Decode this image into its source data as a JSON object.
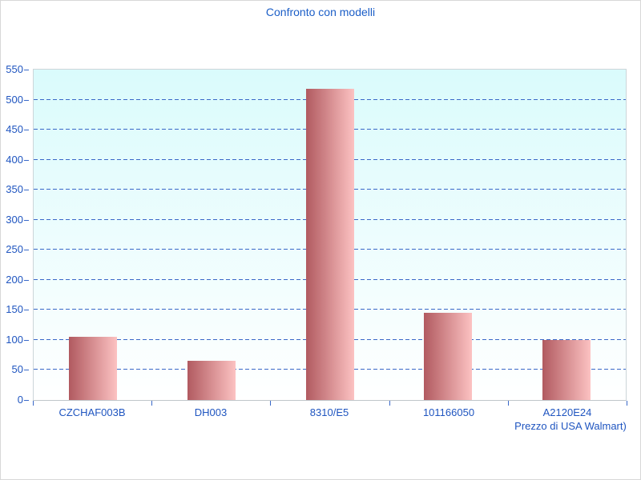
{
  "title": "Confronto con modelli",
  "colors": {
    "title_text": "#1b5ec7",
    "axis_text": "#1f55c0",
    "gridline": "#3968c8",
    "plot_bg_top": "#dafbfc",
    "plot_bg_bottom": "#ffffff",
    "plot_border": "#ccd5d9",
    "axis_line": "#c0c6ca",
    "bar_dark": "#b15a60",
    "bar_light": "#fcc2c2",
    "outer_border": "#d8d8d8"
  },
  "chart_data": {
    "type": "bar",
    "title": "Confronto con modelli",
    "categories": [
      "CZCHAF003B",
      "DH003",
      "8310/E5",
      "101166050",
      "A2120E24"
    ],
    "values": [
      105,
      65,
      518,
      145,
      100
    ],
    "xlabel": "",
    "ylabel": "",
    "ylim": [
      0,
      550
    ],
    "ytick_step": 50,
    "grid": "horizontal-dashed",
    "legend": "none",
    "note_under_last_category": "Prezzo di USA Walmart)"
  }
}
